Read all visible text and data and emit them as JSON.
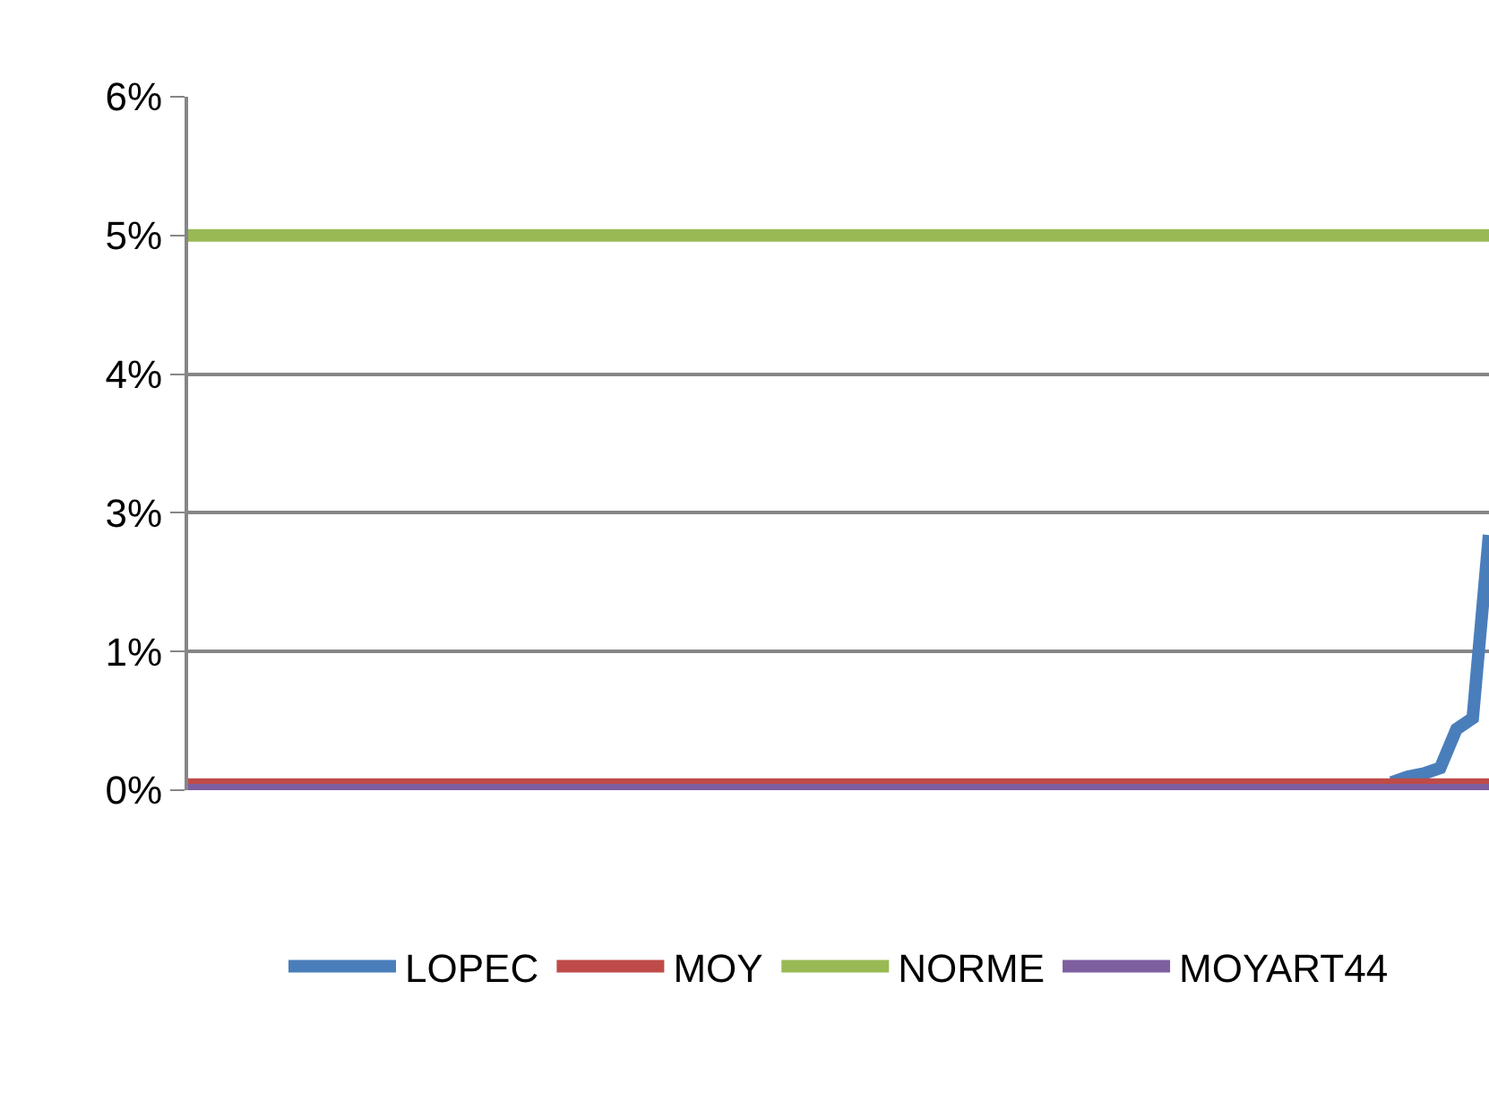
{
  "chart_data": {
    "type": "line",
    "categories": [
      null,
      null,
      null,
      null,
      null,
      null,
      null,
      null,
      null,
      null,
      null,
      null,
      null,
      null,
      null,
      null,
      null,
      null,
      null,
      null,
      null,
      null,
      null,
      null,
      null,
      null,
      null,
      null,
      null,
      null,
      null,
      null,
      null,
      null,
      null,
      null,
      null,
      null,
      null,
      null,
      null,
      null,
      null,
      null,
      null,
      null,
      null,
      null,
      null,
      null,
      null,
      null,
      null,
      null,
      null,
      null,
      null,
      null,
      null,
      null,
      null,
      null,
      null,
      null,
      null,
      null,
      null,
      null,
      null,
      null,
      null,
      null,
      null,
      null,
      null,
      null,
      null,
      null,
      null,
      null,
      null
    ],
    "series": [
      {
        "name": "LOPEC",
        "color": "#4a7ebb",
        "values": [
          null,
          null,
          null,
          null,
          null,
          null,
          null,
          null,
          null,
          null,
          null,
          null,
          null,
          null,
          null,
          null,
          null,
          null,
          null,
          null,
          null,
          null,
          null,
          null,
          null,
          null,
          null,
          null,
          null,
          null,
          null,
          null,
          null,
          null,
          null,
          null,
          null,
          null,
          null,
          null,
          null,
          null,
          null,
          null,
          null,
          null,
          null,
          null,
          null,
          null,
          null,
          null,
          null,
          null,
          null,
          null,
          null,
          null,
          null,
          null,
          null,
          null,
          null,
          null,
          null,
          null,
          null,
          null,
          null,
          null,
          null,
          null,
          null,
          null,
          0.07,
          0.12,
          0.15,
          0.2,
          0.55,
          0.65,
          2.3
        ]
      },
      {
        "name": "MOY",
        "color": "#be4b48",
        "values": [
          0.05,
          0.05,
          0.05,
          0.05,
          0.05,
          0.05,
          0.05,
          0.05,
          0.05,
          0.05,
          0.05,
          0.05,
          0.05,
          0.05,
          0.05,
          0.05,
          0.05,
          0.05,
          0.05,
          0.05,
          0.05,
          0.05,
          0.05,
          0.05,
          0.05,
          0.05,
          0.05,
          0.05,
          0.05,
          0.05,
          0.05,
          0.05,
          0.05,
          0.05,
          0.05,
          0.05,
          0.05,
          0.05,
          0.05,
          0.05,
          0.05,
          0.05,
          0.05,
          0.05,
          0.05,
          0.05,
          0.05,
          0.05,
          0.05,
          0.05,
          0.05,
          0.05,
          0.05,
          0.05,
          0.05,
          0.05,
          0.05,
          0.05,
          0.05,
          0.05,
          0.05,
          0.05,
          0.05,
          0.05,
          0.05,
          0.05,
          0.05,
          0.05,
          0.05,
          0.05,
          0.05,
          0.05,
          0.05,
          0.05,
          0.05,
          0.05,
          0.05,
          0.05,
          0.05,
          0.05,
          0.05
        ]
      },
      {
        "name": "NORME",
        "color": "#98b954",
        "values": [
          5,
          5,
          5,
          5,
          5,
          5,
          5,
          5,
          5,
          5,
          5,
          5,
          5,
          5,
          5,
          5,
          5,
          5,
          5,
          5,
          5,
          5,
          5,
          5,
          5,
          5,
          5,
          5,
          5,
          5,
          5,
          5,
          5,
          5,
          5,
          5,
          5,
          5,
          5,
          5,
          5,
          5,
          5,
          5,
          5,
          5,
          5,
          5,
          5,
          5,
          5,
          5,
          5,
          5,
          5,
          5,
          5,
          5,
          5,
          5,
          5,
          5,
          5,
          5,
          5,
          5,
          5,
          5,
          5,
          5,
          5,
          5,
          5,
          5,
          5,
          5,
          5,
          5,
          5,
          5,
          5
        ]
      },
      {
        "name": "MOYART44",
        "color": "#7d5fa0",
        "values": [
          0,
          0,
          0,
          0,
          0,
          0,
          0,
          0,
          0,
          0,
          0,
          0,
          0,
          0,
          0,
          0,
          0,
          0,
          0,
          0,
          0,
          0,
          0,
          0,
          0,
          0,
          0,
          0,
          0,
          0,
          0,
          0,
          0,
          0,
          0,
          0,
          0,
          0,
          0,
          0,
          0,
          0,
          0,
          0,
          0,
          0,
          0,
          0,
          0,
          0,
          0,
          0,
          0,
          0,
          0,
          0,
          0,
          0,
          0,
          0,
          0,
          0,
          0,
          0,
          0,
          0,
          0,
          0,
          0,
          0,
          0,
          0,
          0,
          0,
          0,
          0,
          0,
          0,
          0,
          0,
          0
        ]
      }
    ],
    "ylim": [
      0,
      6.25
    ],
    "yticks": [
      {
        "value": 0,
        "label": "0%"
      },
      {
        "value": 1.25,
        "label": "1%"
      },
      {
        "value": 2.5,
        "label": "3%"
      },
      {
        "value": 3.75,
        "label": "4%"
      },
      {
        "value": 5,
        "label": "5%"
      },
      {
        "value": 6.25,
        "label": "6%"
      }
    ],
    "grid": "y",
    "legend": "bottom",
    "marker": "none",
    "line_style": "solid",
    "tick_labels": "y"
  }
}
